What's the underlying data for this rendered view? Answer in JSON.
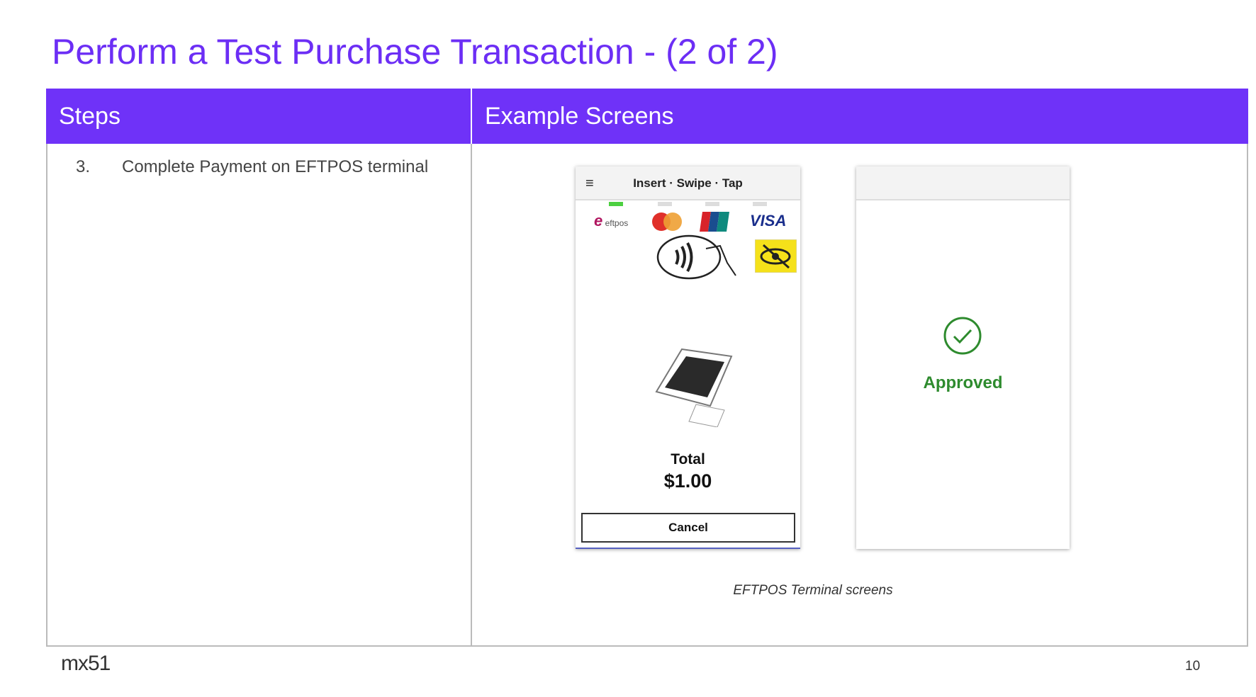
{
  "title": "Perform a Test Purchase Transaction - (2 of 2)",
  "table": {
    "headers": [
      "Steps",
      "Example Screens"
    ],
    "steps": [
      {
        "number": "3.",
        "text": "Complete Payment on EFTPOS terminal"
      }
    ]
  },
  "terminal1": {
    "header": "Insert · Swipe · Tap",
    "card_logos": [
      "eftpos",
      "mastercard",
      "unionpay",
      "VISA"
    ],
    "active_indicator": 0,
    "total_label": "Total",
    "total_amount": "$1.00",
    "cancel_label": "Cancel"
  },
  "terminal2": {
    "status": "Approved",
    "status_color": "#2e8b2e"
  },
  "caption": "EFTPOS Terminal screens",
  "footer": {
    "logo": "mx51",
    "page_number": "10"
  },
  "colors": {
    "accent": "#6f32f8",
    "title": "#6c2ef5"
  }
}
